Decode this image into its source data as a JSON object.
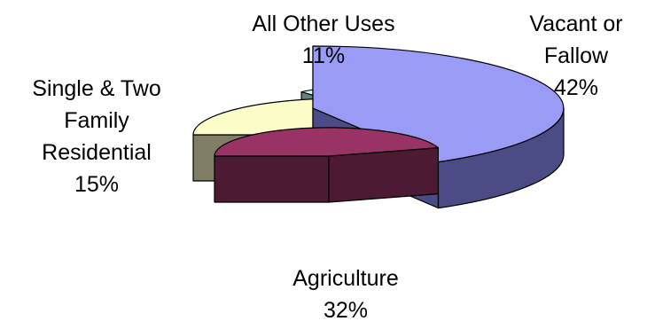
{
  "chart_data": {
    "type": "pie",
    "style": "3d-exploded",
    "slices": [
      {
        "key": "vacant",
        "label_lines": [
          "Vacant or",
          "Fallow",
          "42%"
        ],
        "name": "Vacant or Fallow",
        "value": 42,
        "color_top": "#9a9af7",
        "color_side": "#4b4b86"
      },
      {
        "key": "agriculture",
        "label_lines": [
          "Agriculture",
          "32%"
        ],
        "name": "Agriculture",
        "value": 32,
        "color_top": "#993366",
        "color_side": "#4d1a33"
      },
      {
        "key": "residential",
        "label_lines": [
          "Single & Two",
          "Family",
          "Residential",
          "15%"
        ],
        "name": "Single & Two Family Residential",
        "value": 15,
        "color_top": "#fdfdc9",
        "color_side": "#807f65"
      },
      {
        "key": "other",
        "label_lines": [
          "All Other Uses",
          "11%"
        ],
        "name": "All Other Uses",
        "value": 11,
        "color_top": "#ccffff",
        "color_side": "#658080"
      }
    ]
  }
}
